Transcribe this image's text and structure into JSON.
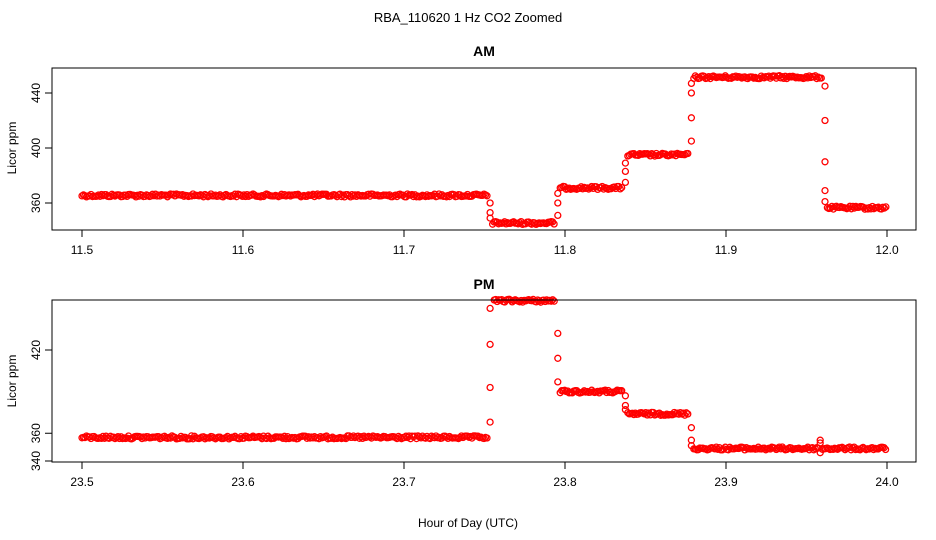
{
  "figure": {
    "title": "RBA_110620  1 Hz CO2 Zoomed",
    "xlabel": "Hour of Day (UTC)",
    "marker_color": "#ff0000"
  },
  "chart_data": [
    {
      "type": "scatter",
      "title": "AM",
      "xlabel": "",
      "ylabel": "Licor ppm",
      "xlim": [
        11.5,
        12.0
      ],
      "ylim": [
        340,
        460
      ],
      "xticks": [
        11.5,
        11.6,
        11.7,
        11.8,
        11.9,
        12.0
      ],
      "xtick_labels": [
        "11.5",
        "11.6",
        "11.7",
        "11.8",
        "11.9",
        "12.0"
      ],
      "yticks": [
        360,
        400,
        440
      ],
      "ytick_labels": [
        "360",
        "400",
        "440"
      ],
      "grid": false,
      "series": [
        {
          "marker": "circle-open",
          "color": "#ff0000",
          "segments": [
            {
              "x_start": 11.5,
              "x_end": 11.752,
              "level": 365.5
            },
            {
              "x_start": 11.755,
              "x_end": 11.794,
              "level": 345.5
            },
            {
              "x_start": 11.797,
              "x_end": 11.836,
              "level": 371
            },
            {
              "x_start": 11.839,
              "x_end": 11.877,
              "level": 395
            },
            {
              "x_start": 11.88,
              "x_end": 11.96,
              "level": 451.5
            },
            {
              "x_start": 11.963,
              "x_end": 12.0,
              "level": 356.5
            }
          ],
          "transitions": [
            {
              "x": 11.7535,
              "values": [
                360,
                353,
                349
              ]
            },
            {
              "x": 11.7955,
              "values": [
                351,
                360,
                367
              ]
            },
            {
              "x": 11.8375,
              "values": [
                375,
                383,
                389
              ]
            },
            {
              "x": 11.8785,
              "values": [
                405,
                422,
                440,
                447
              ]
            },
            {
              "x": 11.9615,
              "values": [
                445,
                420,
                390,
                369,
                361
              ]
            }
          ]
        }
      ]
    },
    {
      "type": "scatter",
      "title": "PM",
      "xlabel": "",
      "ylabel": "Licor ppm",
      "xlim": [
        23.5,
        24.0
      ],
      "ylim": [
        340,
        460
      ],
      "xticks": [
        23.5,
        23.6,
        23.7,
        23.8,
        23.9,
        24.0
      ],
      "xtick_labels": [
        "23.5",
        "23.6",
        "23.7",
        "23.8",
        "23.9",
        "24.0"
      ],
      "yticks": [
        340,
        360,
        420
      ],
      "ytick_labels": [
        "340",
        "360",
        "420"
      ],
      "grid": false,
      "series": [
        {
          "marker": "circle-open",
          "color": "#ff0000",
          "segments": [
            {
              "x_start": 23.5,
              "x_end": 23.752,
              "level": 357
            },
            {
              "x_start": 23.756,
              "x_end": 23.794,
              "level": 455.5
            },
            {
              "x_start": 23.797,
              "x_end": 23.836,
              "level": 390
            },
            {
              "x_start": 23.839,
              "x_end": 23.877,
              "level": 374
            },
            {
              "x_start": 23.88,
              "x_end": 23.958,
              "level": 349
            },
            {
              "x_start": 23.96,
              "x_end": 24.0,
              "level": 349
            }
          ],
          "transitions": [
            {
              "x": 23.7535,
              "values": [
                368,
                393,
                424,
                450
              ]
            },
            {
              "x": 23.7955,
              "values": [
                432,
                414,
                397
              ]
            },
            {
              "x": 23.8375,
              "values": [
                387,
                380,
                377
              ]
            },
            {
              "x": 23.8785,
              "values": [
                364,
                355,
                351
              ]
            },
            {
              "x": 23.9585,
              "values": [
                346,
                355,
                353
              ]
            }
          ]
        }
      ]
    }
  ]
}
